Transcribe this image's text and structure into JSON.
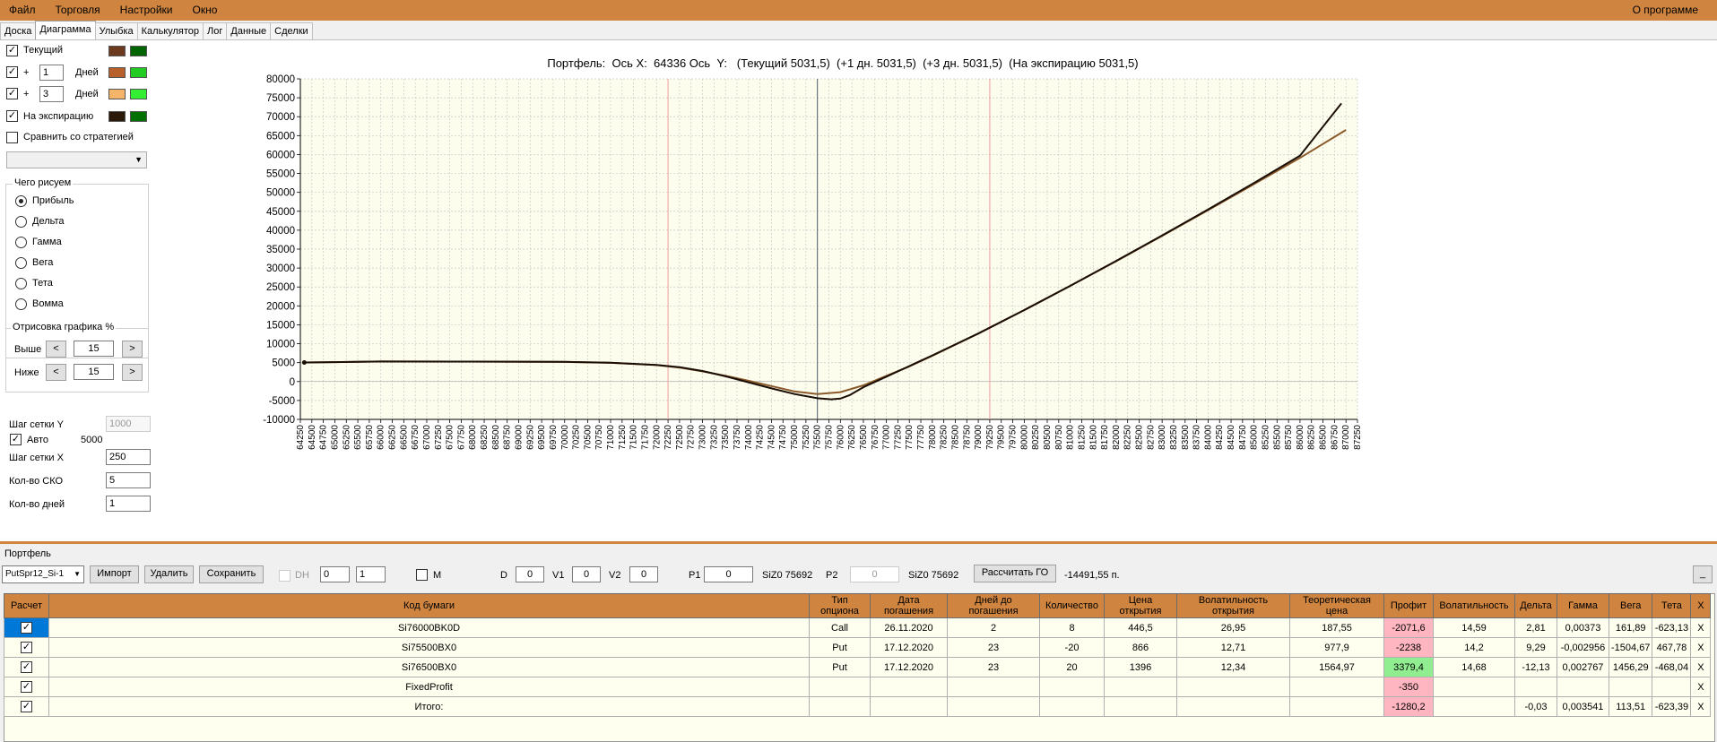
{
  "menu": {
    "file": "Файл",
    "trade": "Торговля",
    "settings": "Настройки",
    "window": "Окно",
    "about": "О программе"
  },
  "tabs": [
    "Доска",
    "Диаграмма",
    "Улыбка",
    "Калькулятор",
    "Лог",
    "Данные",
    "Сделки"
  ],
  "left": {
    "current_label": "Текущий",
    "plus": "+",
    "days1": "1",
    "days3": "3",
    "days_label": "Дней",
    "expiry_label": "На экспирацию",
    "compare_label": "Сравнить со стратегией",
    "draw_group": "Чего рисуем",
    "radios": [
      "Прибыль",
      "Дельта",
      "Гамма",
      "Вега",
      "Тета",
      "Вомма"
    ],
    "render_group": "Отрисовка графика %",
    "above": "Выше",
    "below": "Ниже",
    "above_val": "15",
    "below_val": "15",
    "lt": "<",
    "gt": ">",
    "grid_y_label": "Шаг сетки Y",
    "grid_y_val": "1000",
    "auto_label": "Авто",
    "auto_val": "5000",
    "grid_x_label": "Шаг сетки X",
    "grid_x_val": "250",
    "sko_label": "Кол-во СКО",
    "sko_val": "5",
    "days_count_label": "Кол-во дней",
    "days_count_val": "1",
    "colors": [
      "#6b3a1f",
      "#006400",
      "#b8602c",
      "#22cc22",
      "#f4b469",
      "#33ee33",
      "#2b1a0a",
      "#007000"
    ]
  },
  "chart_data": {
    "type": "line",
    "title": "Портфель:  Ось X:  64336 Ось  Y:   (Текущий 5031,5)  (+1 дн. 5031,5)  (+3 дн. 5031,5)  (На экспирацию 5031,5)",
    "xlim": [
      64250,
      87250
    ],
    "ylim": [
      -10000,
      80000
    ],
    "yticks": [
      -10000,
      -5000,
      0,
      5000,
      10000,
      15000,
      20000,
      25000,
      30000,
      35000,
      40000,
      45000,
      50000,
      55000,
      60000,
      65000,
      70000,
      75000,
      80000
    ],
    "x_step": 250,
    "grid": true,
    "vlines_red": [
      72250,
      79250
    ],
    "vline_center": 75500,
    "series": [
      {
        "x": [
          64336,
          66000,
          68000,
          70000,
          71000,
          72000,
          72500,
          73000,
          73500,
          74000,
          74500,
          75000,
          75500,
          76000,
          76500,
          77000,
          77500,
          78000,
          79000,
          80000,
          81000,
          82000,
          83000,
          84000,
          85000,
          86000,
          87000
        ],
        "y": [
          5031,
          5300,
          5280,
          5180,
          4950,
          4350,
          3700,
          2700,
          1500,
          200,
          -1200,
          -2600,
          -3300,
          -2800,
          -1000,
          1500,
          4000,
          6800,
          12700,
          18900,
          25300,
          31800,
          38500,
          45300,
          52200,
          59100,
          66500
        ]
      },
      {
        "x": [
          64336,
          66000,
          68000,
          70000,
          71000,
          72000,
          72500,
          73000,
          73500,
          74000,
          74500,
          75000,
          75500,
          75800,
          76000,
          76200,
          76500,
          77000,
          77500,
          78000,
          79000,
          80000,
          81000,
          82000,
          83000,
          84000,
          85000,
          86000,
          86900
        ],
        "y": [
          5031,
          5300,
          5280,
          5200,
          5000,
          4400,
          3800,
          2800,
          1400,
          -200,
          -1800,
          -3300,
          -4400,
          -4700,
          -4500,
          -3600,
          -1500,
          1300,
          4100,
          6900,
          12700,
          18900,
          25300,
          31900,
          38600,
          45500,
          52500,
          59700,
          73500
        ]
      }
    ]
  },
  "bottom": {
    "portfolio_label": "Портфель",
    "combo_val": "PutSpr12_Si-1",
    "import": "Импорт",
    "delete": "Удалить",
    "save": "Сохранить",
    "dh": "DH",
    "spin1": "0",
    "spin2": "1",
    "m": "M",
    "d_label": "D",
    "d_val": "0",
    "v1_label": "V1",
    "v1_val": "0",
    "v2_label": "V2",
    "v2_val": "0",
    "p1_label": "P1",
    "p1_val": "0",
    "siz1": "SiZ0 75692",
    "p2_label": "P2",
    "p2_val": "0",
    "siz2": "SiZ0 75692",
    "calc_go": "Рассчитать ГО",
    "go_val": "-14491,55 п.",
    "min_btn": "_"
  },
  "table": {
    "headers": [
      "Расчет",
      "Код бумаги",
      "Тип опциона",
      "Дата погашения",
      "Дней до погашения",
      "Количество",
      "Цена открытия",
      "Волатильность открытия",
      "Теоретическая цена",
      "Профит",
      "Волатильность",
      "Дельта",
      "Гамма",
      "Вега",
      "Тета",
      "X"
    ],
    "rows": [
      [
        "Si76000BK0D",
        "Call",
        "26.11.2020",
        "2",
        "8",
        "446,5",
        "26,95",
        "187,55",
        "-2071,6",
        "14,59",
        "2,81",
        "0,00373",
        "161,89",
        "-623,13",
        "X"
      ],
      [
        "Si75500BX0",
        "Put",
        "17.12.2020",
        "23",
        "-20",
        "866",
        "12,71",
        "977,9",
        "-2238",
        "14,2",
        "9,29",
        "-0,002956",
        "-1504,67",
        "467,78",
        "X"
      ],
      [
        "Si76500BX0",
        "Put",
        "17.12.2020",
        "23",
        "20",
        "1396",
        "12,34",
        "1564,97",
        "3379,4",
        "14,68",
        "-12,13",
        "0,002767",
        "1456,29",
        "-468,04",
        "X"
      ],
      [
        "FixedProfit",
        "",
        "",
        "",
        "",
        "",
        "",
        "",
        "-350",
        "",
        "",
        "",
        "",
        "",
        "X"
      ],
      [
        "Итого:",
        "",
        "",
        "",
        "",
        "",
        "",
        "",
        "-1280,2",
        "",
        "-0,03",
        "0,003541",
        "113,51",
        "-623,39",
        "X"
      ]
    ]
  }
}
